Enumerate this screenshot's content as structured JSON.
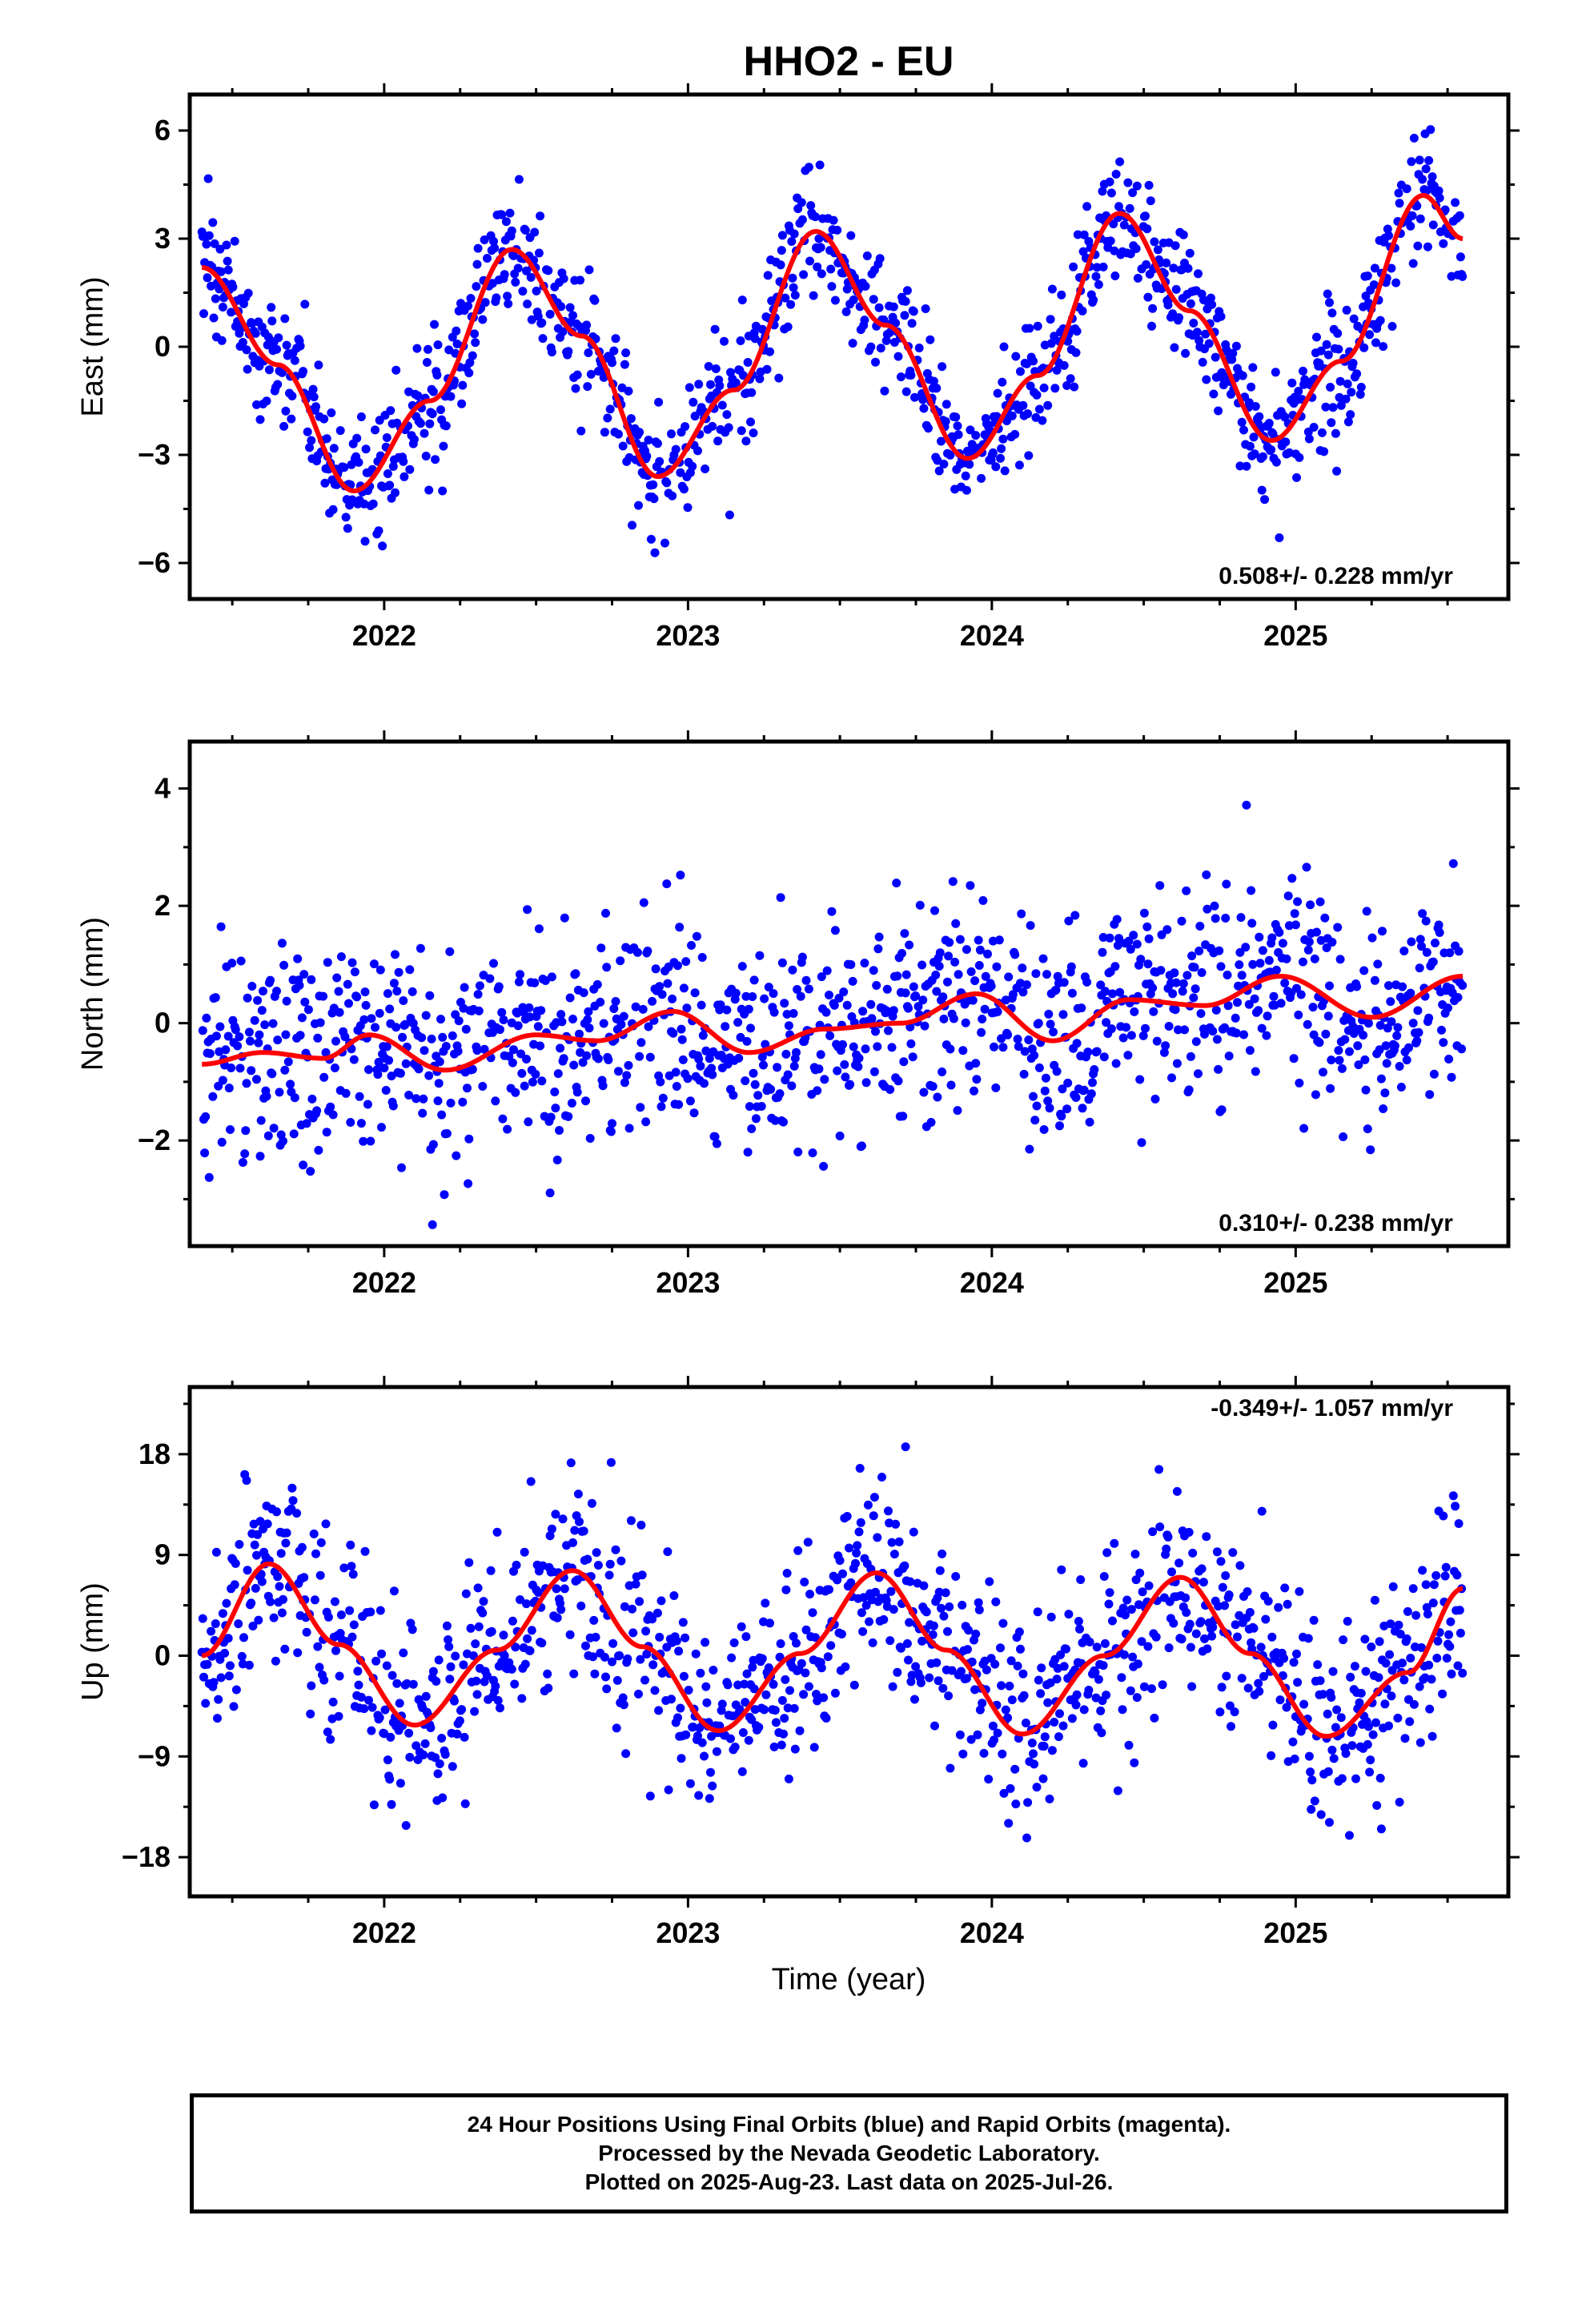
{
  "title": "HHO2 - EU",
  "xlabel": "Time (year)",
  "caption": {
    "line1": "24 Hour Positions Using Final Orbits (blue) and Rapid Orbits (magenta).",
    "line2": "Processed by the Nevada Geodetic Laboratory.",
    "line3": "Plotted on 2025-Aug-23. Last data on 2025-Jul-26."
  },
  "colors": {
    "points": "#0000ff",
    "fit": "#ff0000",
    "axes": "#000000"
  },
  "chart_data": [
    {
      "type": "scatter",
      "component": "east",
      "ylabel": "East (mm)",
      "rate_label": "0.508+/- 0.228 mm/yr",
      "xlim": [
        2021.36,
        2025.7
      ],
      "ylim": [
        -7.0,
        7.0
      ],
      "x_ticks": [
        2022,
        2023,
        2024,
        2025
      ],
      "x_tick_labels": [
        "2022",
        "2023",
        "2024",
        "2025"
      ],
      "y_ticks": [
        -6,
        -3,
        0,
        3,
        6
      ],
      "y_tick_labels": [
        "−6",
        "−3",
        "0",
        "3",
        "6"
      ],
      "fit": {
        "x": [
          2021.4,
          2021.65,
          2021.9,
          2022.15,
          2022.42,
          2022.65,
          2022.9,
          2023.15,
          2023.42,
          2023.65,
          2023.92,
          2024.15,
          2024.42,
          2024.65,
          2024.92,
          2025.15,
          2025.42,
          2025.55
        ],
        "y": [
          2.2,
          -0.5,
          -4.0,
          -1.5,
          2.7,
          0.3,
          -3.6,
          -1.2,
          3.2,
          0.6,
          -3.1,
          -0.8,
          3.7,
          1.0,
          -2.6,
          -0.4,
          4.2,
          3.0
        ]
      },
      "points_source": "fit plus scatter, sd 0.9"
    },
    {
      "type": "scatter",
      "component": "north",
      "ylabel": "North (mm)",
      "rate_label": "0.310+/- 0.238 mm/yr",
      "xlim": [
        2021.36,
        2025.7
      ],
      "ylim": [
        -3.8,
        4.8
      ],
      "x_ticks": [
        2022,
        2023,
        2024,
        2025
      ],
      "x_tick_labels": [
        "2022",
        "2023",
        "2024",
        "2025"
      ],
      "y_ticks": [
        -2,
        0,
        2,
        4
      ],
      "y_tick_labels": [
        "−2",
        "0",
        "2",
        "4"
      ],
      "fit": {
        "x": [
          2021.4,
          2021.6,
          2021.8,
          2021.95,
          2022.2,
          2022.5,
          2022.7,
          2022.95,
          2023.2,
          2023.45,
          2023.7,
          2023.95,
          2024.2,
          2024.45,
          2024.7,
          2024.95,
          2025.25,
          2025.55
        ],
        "y": [
          -0.7,
          -0.5,
          -0.6,
          -0.2,
          -0.8,
          -0.2,
          -0.3,
          0.2,
          -0.5,
          -0.1,
          0.0,
          0.5,
          -0.3,
          0.4,
          0.3,
          0.8,
          0.1,
          0.8
        ]
      },
      "points_source": "fit plus scatter, sd 0.9"
    },
    {
      "type": "scatter",
      "component": "up",
      "ylabel": "Up (mm)",
      "rate_label": "-0.349+/- 1.057 mm/yr",
      "xlim": [
        2021.36,
        2025.7
      ],
      "ylim": [
        -21.5,
        24.0
      ],
      "x_ticks": [
        2022,
        2023,
        2024,
        2025
      ],
      "x_tick_labels": [
        "2022",
        "2023",
        "2024",
        "2025"
      ],
      "y_ticks": [
        -18,
        -9,
        0,
        9,
        18
      ],
      "y_tick_labels": [
        "−18",
        "−9",
        "0",
        "9",
        "18"
      ],
      "fit": {
        "x": [
          2021.4,
          2021.62,
          2021.85,
          2022.1,
          2022.37,
          2022.62,
          2022.85,
          2023.1,
          2023.37,
          2023.62,
          2023.85,
          2024.1,
          2024.37,
          2024.62,
          2024.85,
          2025.1,
          2025.37,
          2025.55
        ],
        "y": [
          0.0,
          8.2,
          1.0,
          -6.2,
          0.5,
          7.6,
          0.8,
          -6.7,
          0.2,
          7.4,
          0.5,
          -7.0,
          0.0,
          7.0,
          0.2,
          -7.2,
          -1.5,
          6.0
        ]
      },
      "points_source": "fit plus scatter, sd 4.5"
    }
  ]
}
